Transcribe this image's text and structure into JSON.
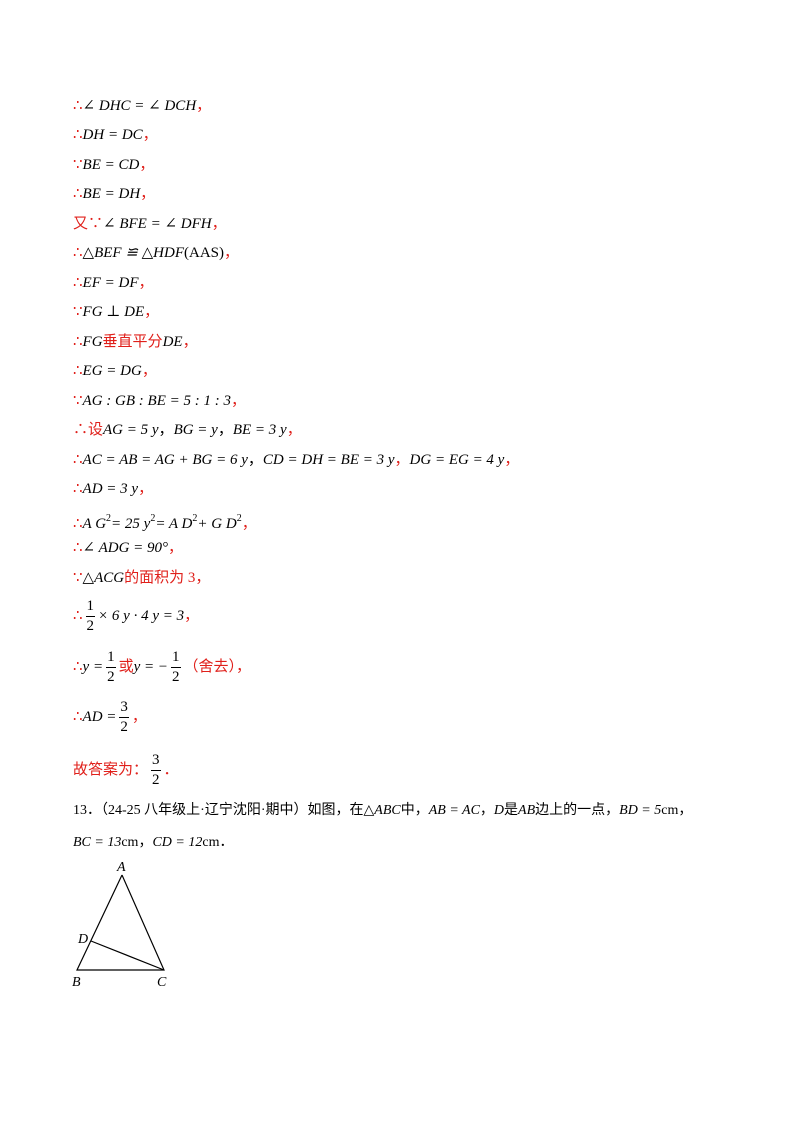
{
  "lines": [
    [
      "∴",
      "∠ DHC = ∠ DCH",
      "，"
    ],
    [
      "∴",
      "DH = DC",
      "，"
    ],
    [
      "∵",
      "BE = CD",
      "，"
    ],
    [
      "∴",
      "BE = DH",
      "，"
    ],
    [
      "又∵",
      "∠ BFE = ∠ DFH",
      "，"
    ],
    [
      "∴",
      "△BEF ≌ △HDF",
      "(AAS)",
      "，"
    ],
    [
      "∴",
      "EF = DF",
      "，"
    ],
    [
      "∵",
      "FG ⊥ DE",
      "，"
    ],
    [
      "∴",
      "FG",
      "垂直平分",
      "DE",
      "，"
    ],
    [
      "∴",
      "EG = DG",
      "，"
    ],
    [
      "∵",
      "AG : GB : BE = 5 : 1 : 3",
      "，"
    ],
    [
      "∴设",
      "AG = 5 y",
      "，",
      "BG = y",
      "，",
      "BE = 3 y",
      "，"
    ],
    [
      "∴",
      "AC = AB = AG + BG = 6 y",
      "，",
      "CD = DH = BE = 3 y",
      "，",
      "DG = EG = 4 y",
      "，"
    ],
    [
      "∴",
      "AD = 3 y",
      "，"
    ],
    [
      "∴",
      "A G",
      "2",
      "= 25 y",
      "2",
      "= A D",
      "2",
      "+ G D",
      "2",
      "，"
    ],
    [
      "∴",
      "∠ ADG = 90°",
      "，"
    ],
    [
      "∵",
      "△ACG",
      "的面积为 3",
      "，"
    ],
    [
      "∴",
      "1",
      "2",
      "× 6 y · 4 y = 3",
      "，"
    ],
    [
      "∴",
      "y =",
      "1",
      "2",
      "或",
      "y = −",
      "1",
      "2",
      "（舍去）",
      "，"
    ],
    [
      "∴",
      "AD =",
      "3",
      "2",
      "，"
    ],
    [
      "故答案为：",
      "3",
      "2",
      "．"
    ]
  ],
  "problem": {
    "line1": [
      "13．",
      "（24-25 八年级上·辽宁沈阳·期中）如图，在",
      "△ABC",
      "中，",
      "AB = AC",
      "，",
      "D",
      "是",
      "AB",
      "边上的一点，",
      "BD = 5",
      "cm",
      "，"
    ],
    "line2": [
      "BC = 13",
      "cm",
      "，",
      "CD = 12",
      "cm",
      "．"
    ]
  },
  "figure": {
    "labels": [
      "A",
      "D",
      "B",
      "C"
    ]
  }
}
